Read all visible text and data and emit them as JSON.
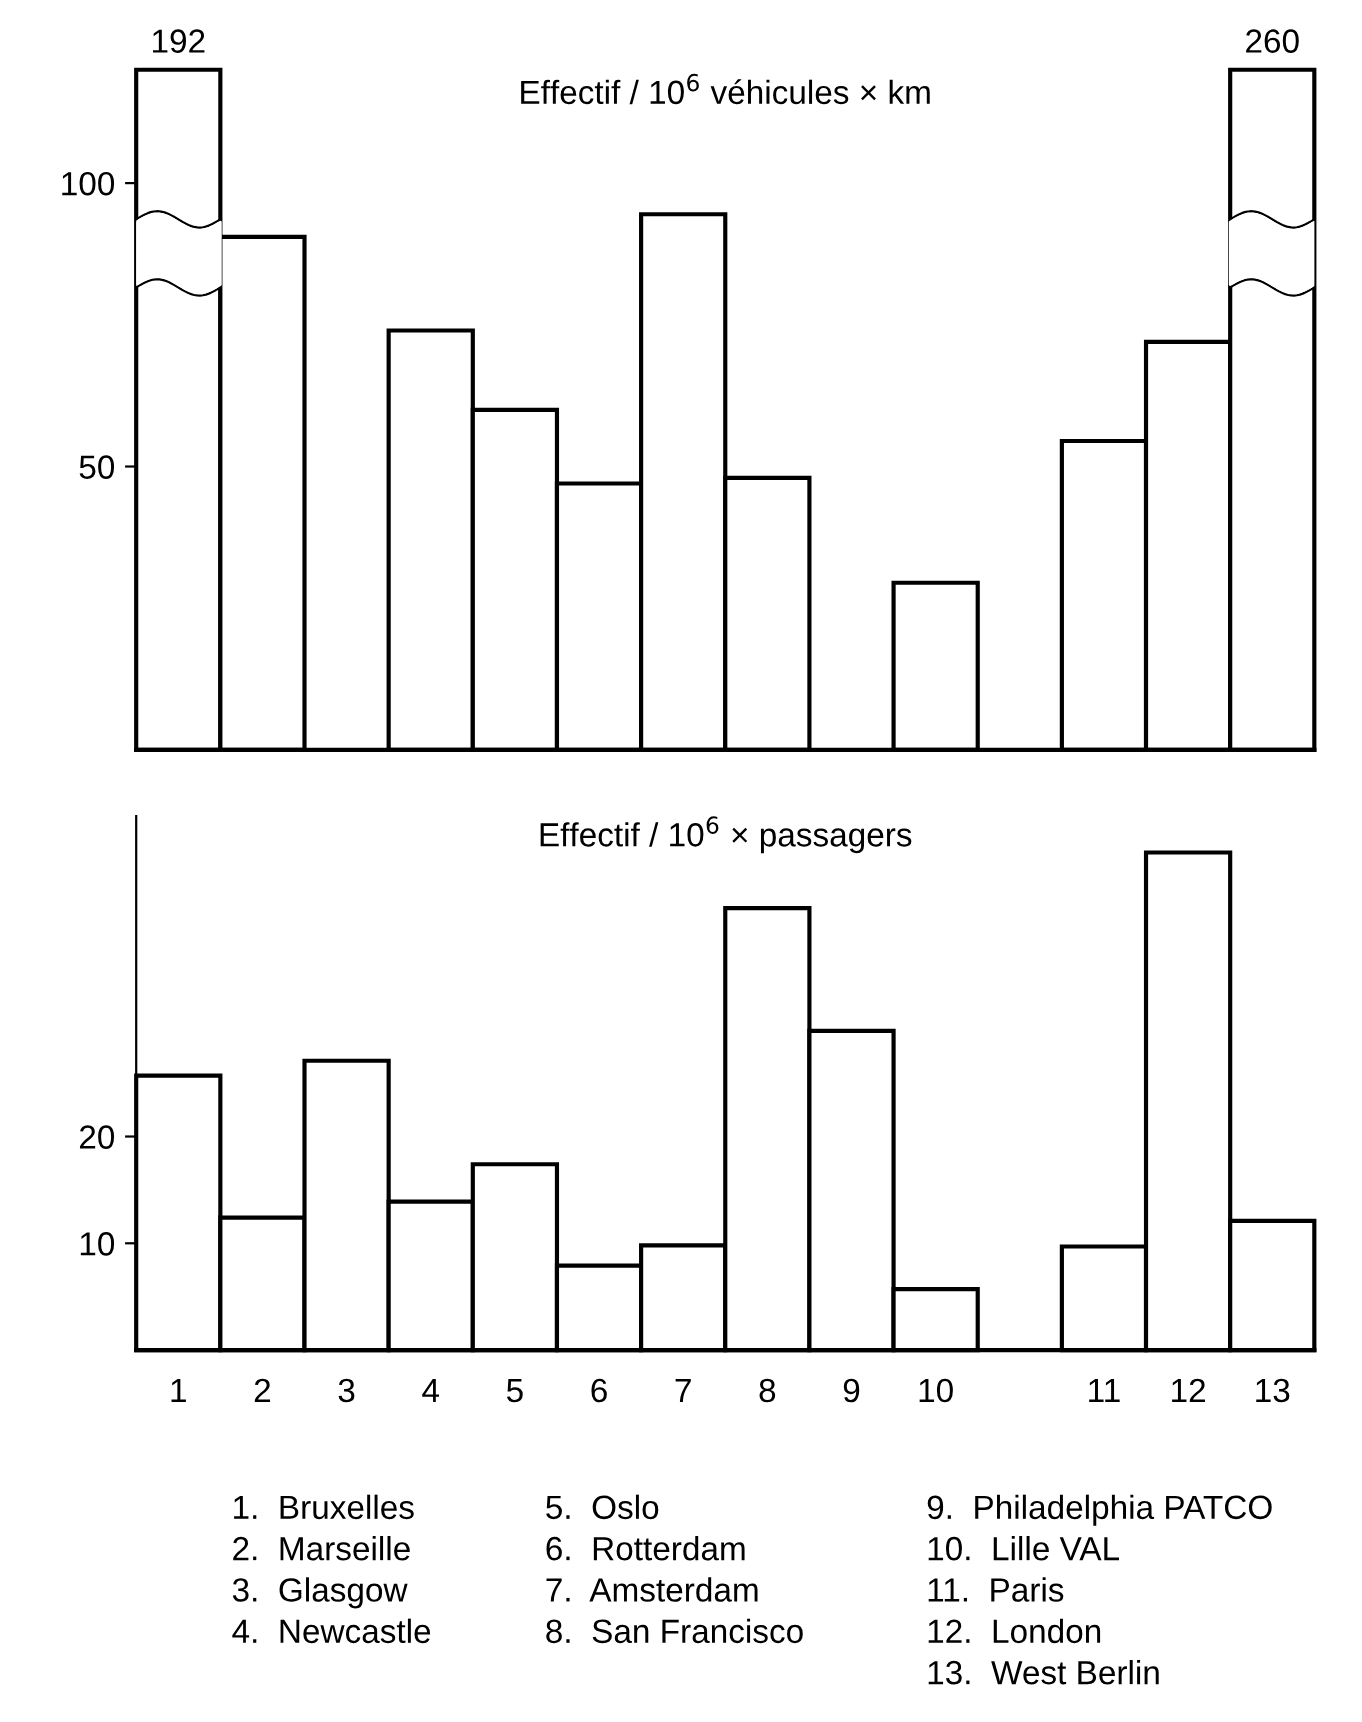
{
  "chart_data": [
    {
      "type": "bar",
      "title": "Effectif / 10$^{6}$ véhicules × km",
      "categories": [
        "1",
        "2",
        "3",
        "4",
        "5",
        "6",
        "7",
        "8",
        "9",
        "10",
        null,
        "11",
        "12",
        "13"
      ],
      "values": [
        null,
        90.5,
        null,
        74,
        60,
        47,
        94.5,
        48,
        null,
        29.5,
        null,
        54.5,
        72,
        null
      ],
      "value_labels": [
        "192",
        null,
        null,
        null,
        null,
        null,
        null,
        null,
        null,
        null,
        null,
        null,
        null,
        "260"
      ],
      "color": "#ffffff",
      "ylim": [
        0,
        120
      ],
      "yticks": [
        50,
        100
      ],
      "tick_labels": "y",
      "grid": false
    },
    {
      "type": "bar",
      "title": "Effectif / 10$^{6}$ × passagers",
      "categories": [
        "1",
        "2",
        "3",
        "4",
        "5",
        "6",
        "7",
        "8",
        "9",
        "10",
        null,
        "11",
        "12",
        "13"
      ],
      "values": [
        25.7,
        12.4,
        27.1,
        13.9,
        17.4,
        7.9,
        9.8,
        41.4,
        29.9,
        5.7,
        null,
        9.7,
        46.6,
        12.1
      ],
      "color": "#ffffff",
      "ylim": [
        0,
        50
      ],
      "yticks": [
        10,
        20
      ],
      "grid": false,
      "annotations": [
        "1.  Bruxelles",
        "2.  Marseille",
        "3.  Glasgow",
        "4.  Newcastle",
        "5.  Oslo",
        "6.  Rotterdam",
        "7.  Amsterdam",
        "8.  San Francisco",
        "9.  Philadelphia PATCO",
        "10.  Lille VAL",
        "11.  Paris",
        "12.  London",
        "13.  West Berlin"
      ]
    }
  ]
}
